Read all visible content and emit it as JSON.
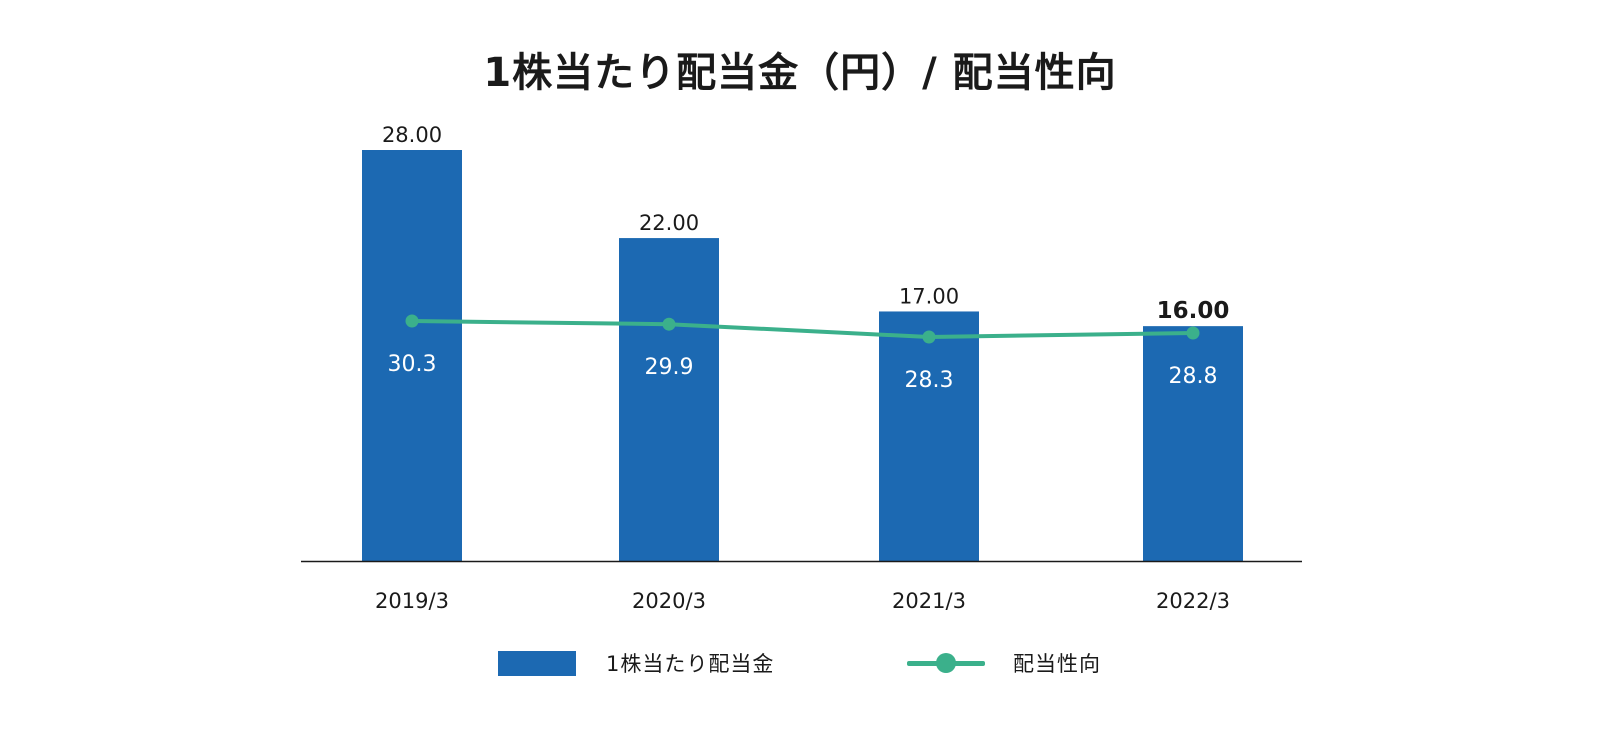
{
  "chart_data": {
    "type": "bar",
    "title": "1株当たり配当金（円）/ 配当性向",
    "categories": [
      "2019/3",
      "2020/3",
      "2021/3",
      "2022/3"
    ],
    "series": [
      {
        "name": "1株当たり配当金",
        "type": "bar",
        "values": [
          28.0,
          22.0,
          17.0,
          16.0
        ],
        "labels": [
          "28.00",
          "22.00",
          "17.00",
          "16.00"
        ],
        "color": "#1c69b2"
      },
      {
        "name": "配当性向",
        "type": "line",
        "values": [
          30.3,
          29.9,
          28.3,
          28.8
        ],
        "labels": [
          "30.3",
          "29.9",
          "28.3",
          "28.8"
        ],
        "color": "#3bb08b"
      }
    ],
    "ylim": [
      0,
      28
    ],
    "y2lim": [
      0,
      30.3
    ],
    "highlight_category": "2022/3",
    "grid": false,
    "legend_position": "bottom"
  }
}
